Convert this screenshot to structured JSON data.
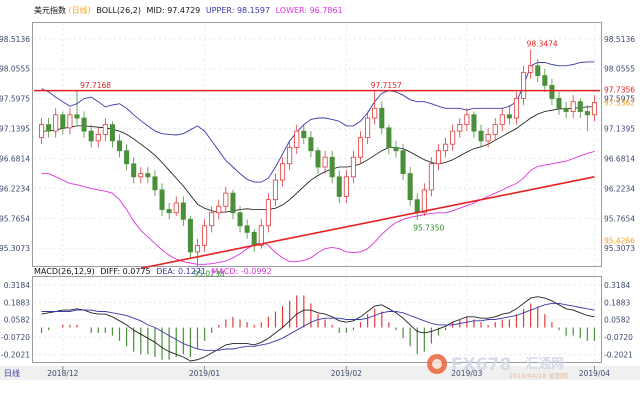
{
  "chart_data": {
    "type": "candlestick",
    "instrument": "美元指数",
    "period_tag": "(日线)",
    "indicator_header": {
      "name": "BOLL(26,2)",
      "mid_label": "MID:",
      "mid": "97.4729",
      "upper_label": "UPPER:",
      "upper": "98.1597",
      "lower_label": "LOWER:",
      "lower": "96.7861"
    },
    "y_ticks": [
      "98.5136",
      "98.0555",
      "97.5975",
      "97.1395",
      "96.6814",
      "96.2234",
      "95.7654",
      "95.3073"
    ],
    "y_tick_values": [
      98.5136,
      98.0555,
      97.5975,
      97.1395,
      96.6814,
      96.2234,
      95.7654,
      95.3073
    ],
    "ylim": [
      95.05,
      98.74
    ],
    "price_badges": [
      {
        "text": "97.7356",
        "value": 97.7356,
        "color": "#e62020"
      },
      {
        "text": "97.5362",
        "value": 97.5362,
        "color": "#f5a623"
      },
      {
        "text": "95.4266",
        "value": 95.4266,
        "color": "#f5a623"
      }
    ],
    "annotations": [
      {
        "text": "97.7168",
        "bar": 6,
        "value": 97.7168,
        "color": "#e62020"
      },
      {
        "text": "97.7157",
        "bar": 47,
        "value": 97.7157,
        "color": "#e62020"
      },
      {
        "text": "98.3474",
        "bar": 69,
        "value": 98.3474,
        "color": "#e62020"
      },
      {
        "text": "95.7350",
        "bar": 53,
        "value": 95.735,
        "color": "#2a8a2a"
      },
      {
        "text": "95.0238",
        "bar": 22,
        "value": 95.0238,
        "color": "#2a8a2a"
      }
    ],
    "horizontal_line": {
      "value": 97.72,
      "color": "#e62020"
    },
    "support_line": {
      "from_bar": 14,
      "from_value": 95.0,
      "to_bar": 78,
      "to_value": 96.4,
      "color": "#e62020"
    },
    "candles": {
      "open": [
        97.0,
        97.2,
        97.1,
        97.35,
        97.15,
        97.35,
        97.3,
        97.1,
        96.95,
        97.05,
        97.2,
        96.95,
        96.8,
        96.6,
        96.4,
        96.45,
        96.4,
        96.2,
        95.9,
        95.85,
        96.0,
        95.75,
        95.25,
        95.35,
        95.65,
        95.85,
        95.95,
        96.15,
        95.85,
        95.65,
        95.55,
        95.35,
        95.65,
        96.05,
        96.35,
        96.6,
        96.85,
        97.1,
        97.0,
        96.8,
        96.55,
        96.7,
        96.4,
        96.1,
        96.4,
        96.7,
        97.0,
        97.3,
        97.45,
        97.15,
        96.85,
        96.8,
        96.45,
        96.05,
        95.85,
        96.2,
        96.6,
        96.8,
        96.9,
        97.1,
        97.2,
        97.35,
        97.1,
        96.95,
        97.05,
        97.2,
        97.35,
        97.3,
        97.6,
        98.0,
        98.1,
        97.95,
        97.8,
        97.6,
        97.45,
        97.4,
        97.55,
        97.4,
        97.35
      ],
      "close": [
        97.2,
        97.1,
        97.35,
        97.15,
        97.35,
        97.3,
        97.1,
        96.95,
        97.05,
        97.2,
        96.95,
        96.8,
        96.6,
        96.4,
        96.45,
        96.4,
        96.2,
        95.9,
        95.85,
        96.0,
        95.75,
        95.25,
        95.35,
        95.65,
        95.85,
        95.95,
        96.15,
        95.85,
        95.65,
        95.55,
        95.35,
        95.65,
        96.05,
        96.35,
        96.6,
        96.85,
        97.1,
        97.0,
        96.8,
        96.55,
        96.7,
        96.4,
        96.1,
        96.4,
        96.7,
        97.0,
        97.3,
        97.45,
        97.15,
        96.85,
        96.8,
        96.45,
        96.05,
        95.85,
        96.2,
        96.6,
        96.8,
        96.9,
        97.1,
        97.2,
        97.35,
        97.1,
        96.95,
        97.05,
        97.2,
        97.35,
        97.3,
        97.6,
        98.0,
        98.1,
        97.95,
        97.8,
        97.6,
        97.45,
        97.4,
        97.55,
        97.4,
        97.35,
        97.54
      ],
      "high": [
        97.3,
        97.3,
        97.45,
        97.4,
        97.45,
        97.72,
        97.4,
        97.2,
        97.15,
        97.3,
        97.25,
        97.05,
        96.9,
        96.7,
        96.55,
        96.55,
        96.5,
        96.3,
        96.0,
        96.1,
        96.1,
        95.8,
        95.45,
        95.75,
        95.95,
        96.05,
        96.25,
        96.2,
        95.95,
        95.75,
        95.6,
        95.75,
        96.15,
        96.45,
        96.7,
        96.95,
        97.2,
        97.2,
        97.1,
        96.85,
        96.8,
        96.8,
        96.5,
        96.5,
        96.8,
        97.1,
        97.4,
        97.72,
        97.55,
        97.2,
        96.95,
        96.9,
        96.55,
        96.15,
        96.3,
        96.7,
        96.9,
        97.0,
        97.2,
        97.3,
        97.45,
        97.4,
        97.2,
        97.15,
        97.3,
        97.45,
        97.5,
        97.7,
        98.1,
        98.35,
        98.2,
        98.05,
        97.9,
        97.7,
        97.55,
        97.65,
        97.6,
        97.5,
        97.65
      ],
      "low": [
        96.9,
        97.0,
        97.0,
        97.05,
        97.05,
        97.2,
        97.0,
        96.85,
        96.85,
        96.95,
        96.85,
        96.7,
        96.5,
        96.3,
        96.3,
        96.3,
        96.1,
        95.8,
        95.75,
        95.8,
        95.65,
        95.15,
        95.02,
        95.25,
        95.55,
        95.75,
        95.85,
        95.75,
        95.55,
        95.45,
        95.25,
        95.3,
        95.55,
        95.95,
        96.25,
        96.5,
        96.75,
        96.9,
        96.7,
        96.45,
        96.45,
        96.3,
        96.0,
        96.0,
        96.3,
        96.6,
        96.9,
        97.2,
        97.05,
        96.75,
        96.7,
        96.35,
        95.95,
        95.74,
        95.8,
        96.1,
        96.5,
        96.7,
        96.8,
        97.0,
        97.1,
        97.0,
        96.85,
        96.85,
        96.95,
        97.1,
        97.2,
        97.2,
        97.5,
        97.9,
        97.85,
        97.7,
        97.5,
        97.35,
        97.3,
        97.3,
        97.3,
        97.1,
        97.25
      ]
    },
    "boll_upper": [
      97.75,
      97.7,
      97.62,
      97.55,
      97.48,
      97.52,
      97.6,
      97.62,
      97.55,
      97.47,
      97.5,
      97.52,
      97.45,
      97.35,
      97.26,
      97.18,
      97.1,
      97.06,
      97.05,
      97.04,
      97.06,
      97.12,
      97.18,
      97.1,
      96.95,
      96.8,
      96.65,
      96.55,
      96.45,
      96.36,
      96.32,
      96.32,
      96.38,
      96.55,
      96.75,
      96.95,
      97.08,
      97.2,
      97.28,
      97.3,
      97.3,
      97.28,
      97.25,
      97.18,
      97.18,
      97.25,
      97.38,
      97.55,
      97.68,
      97.72,
      97.7,
      97.65,
      97.58,
      97.55,
      97.55,
      97.52,
      97.48,
      97.45,
      97.45,
      97.45,
      97.42,
      97.45,
      97.45,
      97.45,
      97.45,
      97.45,
      97.48,
      97.55,
      97.8,
      98.1,
      98.15,
      98.15,
      98.12,
      98.1,
      98.1,
      98.12,
      98.15,
      98.16,
      98.16
    ],
    "boll_mid": [
      97.1,
      97.1,
      97.12,
      97.14,
      97.16,
      97.18,
      97.18,
      97.17,
      97.16,
      97.15,
      97.13,
      97.1,
      97.05,
      96.98,
      96.9,
      96.82,
      96.73,
      96.62,
      96.5,
      96.38,
      96.26,
      96.12,
      95.98,
      95.92,
      95.88,
      95.86,
      95.86,
      95.88,
      95.9,
      95.91,
      95.9,
      95.9,
      95.9,
      95.92,
      95.97,
      96.05,
      96.15,
      96.25,
      96.35,
      96.42,
      96.48,
      96.52,
      96.55,
      96.55,
      96.56,
      96.6,
      96.66,
      96.73,
      96.8,
      96.85,
      96.85,
      96.83,
      96.78,
      96.72,
      96.66,
      96.62,
      96.6,
      96.62,
      96.66,
      96.72,
      96.78,
      96.83,
      96.86,
      96.9,
      96.96,
      97.02,
      97.08,
      97.14,
      97.22,
      97.3,
      97.36,
      97.4,
      97.42,
      97.44,
      97.44,
      97.45,
      97.46,
      97.47,
      97.47
    ],
    "boll_lower": [
      96.45,
      96.45,
      96.4,
      96.35,
      96.3,
      96.28,
      96.25,
      96.22,
      96.2,
      96.18,
      96.15,
      96.05,
      95.9,
      95.72,
      95.58,
      95.48,
      95.38,
      95.28,
      95.2,
      95.14,
      95.1,
      95.08,
      95.06,
      95.06,
      95.07,
      95.09,
      95.11,
      95.16,
      95.22,
      95.3,
      95.36,
      95.4,
      95.35,
      95.24,
      95.16,
      95.1,
      95.1,
      95.12,
      95.16,
      95.24,
      95.3,
      95.32,
      95.3,
      95.25,
      95.24,
      95.25,
      95.3,
      95.4,
      95.52,
      95.62,
      95.7,
      95.75,
      95.78,
      95.8,
      95.82,
      95.84,
      95.85,
      95.85,
      95.88,
      95.92,
      95.96,
      96.0,
      96.05,
      96.1,
      96.15,
      96.2,
      96.25,
      96.3,
      96.38,
      96.5,
      96.56,
      96.58,
      96.6,
      96.62,
      96.64,
      96.68,
      96.72,
      96.76,
      96.79
    ],
    "macd_panel": {
      "header": {
        "name": "MACD(26,12,9)",
        "diff_label": "DIFF:",
        "diff": "0.0775",
        "dea_label": "DEA:",
        "dea": "0.1271",
        "macd_label": "MACD:",
        "macd": "-0.0992"
      },
      "y_ticks": [
        "0.3184",
        "0.1883",
        "0.0582",
        "-0.0720",
        "-0.2021"
      ],
      "y_tick_values": [
        0.3184,
        0.1883,
        0.0582,
        -0.072,
        -0.2021
      ],
      "ylim": [
        -0.25,
        0.37
      ],
      "diff": [
        0.1,
        0.11,
        0.12,
        0.13,
        0.13,
        0.14,
        0.13,
        0.11,
        0.1,
        0.1,
        0.08,
        0.05,
        0.02,
        -0.02,
        -0.05,
        -0.08,
        -0.11,
        -0.15,
        -0.18,
        -0.2,
        -0.22,
        -0.25,
        -0.24,
        -0.22,
        -0.19,
        -0.16,
        -0.13,
        -0.12,
        -0.12,
        -0.12,
        -0.13,
        -0.11,
        -0.08,
        -0.04,
        0.0,
        0.05,
        0.1,
        0.13,
        0.13,
        0.11,
        0.1,
        0.08,
        0.05,
        0.04,
        0.05,
        0.08,
        0.12,
        0.16,
        0.17,
        0.14,
        0.11,
        0.07,
        0.02,
        -0.03,
        -0.04,
        -0.03,
        -0.01,
        0.01,
        0.04,
        0.06,
        0.08,
        0.08,
        0.07,
        0.07,
        0.08,
        0.1,
        0.11,
        0.14,
        0.18,
        0.22,
        0.23,
        0.22,
        0.2,
        0.17,
        0.14,
        0.13,
        0.11,
        0.09,
        0.08
      ],
      "dea": [
        0.12,
        0.12,
        0.12,
        0.12,
        0.12,
        0.13,
        0.13,
        0.13,
        0.12,
        0.12,
        0.11,
        0.1,
        0.09,
        0.07,
        0.05,
        0.02,
        0.0,
        -0.03,
        -0.06,
        -0.09,
        -0.12,
        -0.14,
        -0.16,
        -0.17,
        -0.17,
        -0.17,
        -0.16,
        -0.16,
        -0.15,
        -0.14,
        -0.14,
        -0.13,
        -0.12,
        -0.1,
        -0.08,
        -0.05,
        -0.02,
        0.01,
        0.04,
        0.06,
        0.07,
        0.07,
        0.07,
        0.06,
        0.06,
        0.06,
        0.07,
        0.09,
        0.11,
        0.12,
        0.12,
        0.11,
        0.09,
        0.07,
        0.05,
        0.03,
        0.02,
        0.02,
        0.02,
        0.03,
        0.04,
        0.05,
        0.05,
        0.06,
        0.06,
        0.07,
        0.08,
        0.09,
        0.11,
        0.13,
        0.15,
        0.17,
        0.18,
        0.18,
        0.17,
        0.16,
        0.15,
        0.14,
        0.13
      ]
    },
    "x_ticks": [
      {
        "label": "2018/12",
        "bar": 3
      },
      {
        "label": "2019/01",
        "bar": 23
      },
      {
        "label": "2019/02",
        "bar": 43
      },
      {
        "label": "2019/03",
        "bar": 60
      },
      {
        "label": "2019/04",
        "bar": 78
      }
    ],
    "bottom_tab": "日线",
    "watermark": {
      "brand": "FX678",
      "tagline": "汇通网",
      "date_text": "2019/04/18 星期四"
    }
  },
  "colors": {
    "up": "#e03a3a",
    "down": "#4a8f3a",
    "boll_upper": "#3a3aaa",
    "boll_mid": "#111111",
    "boll_lower": "#dd33dd",
    "diff": "#222222",
    "dea": "#3a3aaa",
    "axis_text": "#3c4a6c",
    "header_blue": "#3a3aaa",
    "header_pink": "#dd33dd"
  }
}
